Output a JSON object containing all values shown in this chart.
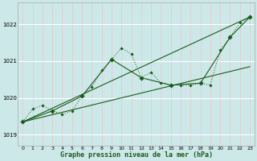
{
  "title": "Graphe pression niveau de la mer (hPa)",
  "bg_color": "#cce8e8",
  "grid_color": "#ffffff",
  "grid_color2": "#e8c8c8",
  "line_color": "#1a5c1a",
  "xlim": [
    -0.5,
    23.5
  ],
  "ylim": [
    1018.7,
    1022.6
  ],
  "yticks": [
    1019,
    1020,
    1021,
    1022
  ],
  "xticks": [
    0,
    1,
    2,
    3,
    4,
    5,
    6,
    7,
    8,
    9,
    10,
    11,
    12,
    13,
    14,
    15,
    16,
    17,
    18,
    19,
    20,
    21,
    22,
    23
  ],
  "series_hourly": {
    "x": [
      0,
      1,
      2,
      3,
      4,
      5,
      6,
      7,
      8,
      9,
      10,
      11,
      12,
      13,
      14,
      15,
      16,
      17,
      18,
      19,
      20,
      21,
      22,
      23
    ],
    "y": [
      1019.35,
      1019.7,
      1019.8,
      1019.65,
      1019.55,
      1019.65,
      1020.05,
      1020.3,
      1020.75,
      1021.05,
      1021.35,
      1021.2,
      1020.55,
      1020.7,
      1020.4,
      1020.35,
      1020.35,
      1020.35,
      1020.4,
      1020.35,
      1021.3,
      1021.65,
      1022.05,
      1022.2
    ]
  },
  "series_3h": {
    "x": [
      0,
      3,
      6,
      9,
      12,
      15,
      18,
      21,
      23
    ],
    "y": [
      1019.35,
      1019.65,
      1020.05,
      1021.05,
      1020.55,
      1020.35,
      1020.4,
      1021.65,
      1022.2
    ]
  },
  "series_min": {
    "x": [
      0,
      23
    ],
    "y": [
      1019.35,
      1022.2
    ]
  },
  "series_trend1": {
    "x": [
      0,
      3,
      6,
      9,
      12,
      15,
      18,
      21,
      23
    ],
    "y": [
      1019.35,
      1019.65,
      1020.05,
      1020.35,
      1020.4,
      1020.5,
      1020.6,
      1020.75,
      1020.85
    ]
  },
  "series_trend2": {
    "x": [
      0,
      23
    ],
    "y": [
      1019.35,
      1020.85
    ]
  }
}
